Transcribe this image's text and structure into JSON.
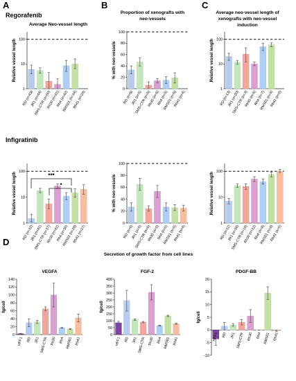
{
  "panels": {
    "A": "A",
    "B": "B",
    "C": "C",
    "D": "D"
  },
  "drugs": {
    "top": "Regorafenib",
    "bottom": "Infigratinib"
  },
  "titles": {
    "a_top": "Average Neo-vessel length",
    "b_top_1": "Proportion of xenografts with",
    "b_top_2": "neo-vessels",
    "c_top_1": "Average neo-vessel length of",
    "c_top_2": "xenografts with neo-vessel",
    "c_top_3": "induction",
    "d_header": "Secretion of growth factor from cell lines"
  },
  "significance": {
    "star3": "***",
    "star1": "*"
  },
  "colors": {
    "RD": "#a9c4ec",
    "JR1": "#b7e3b0",
    "SMS-CTR": "#f2968c",
    "Rh30": "#d28fc8",
    "Rh4": "#9fc7f2",
    "RMS01": "#b9dc95",
    "Rh41": "#f4b38e",
    "HFF1": "#6a2591",
    "error": "#555555"
  },
  "chart_data": [
    {
      "id": "reg_vessel_length",
      "type": "bar",
      "scale": "log",
      "ylabel": "Relative vessel length",
      "ylim": [
        1,
        200
      ],
      "yticks": [
        1,
        10,
        100
      ],
      "reference_line": 100,
      "categories": [
        "RD (n=43)",
        "JR1 (n=44)",
        "SMS-CTR (n=60)",
        "Rh30 (n=41)",
        "Rh4 (n=42)",
        "RMS01 (n=34)",
        "Rh41 (n=28)"
      ],
      "colors": [
        "RD",
        "JR1",
        "SMS-CTR",
        "Rh30",
        "Rh4",
        "RMS01",
        "Rh41"
      ],
      "values": [
        6,
        5.5,
        2,
        1.5,
        8.5,
        10,
        null
      ],
      "errors": [
        [
          4,
          9
        ],
        [
          4.3,
          7
        ],
        [
          1,
          4.5
        ],
        [
          1,
          2.5
        ],
        [
          5,
          14
        ],
        [
          6.5,
          16
        ],
        null
      ]
    },
    {
      "id": "reg_proportion",
      "type": "bar",
      "ylabel": "% with neo-vessels",
      "ylim": [
        0,
        100
      ],
      "yticks": [
        0,
        20,
        40,
        60,
        80,
        100
      ],
      "reference_line": 100,
      "categories": [
        "RD (n=6)",
        "JR1 (n=5)",
        "SMS-CTR (n=5)",
        "Rh30 (n=6)",
        "Rh4 (n=5)",
        "RMS01 (n=5)",
        "Rh41 (n=4)"
      ],
      "colors": [
        "RD",
        "JR1",
        "SMS-CTR",
        "Rh30",
        "Rh4",
        "RMS01",
        "Rh41"
      ],
      "values": [
        33,
        47,
        6,
        14,
        15,
        19,
        null
      ],
      "errors": [
        [
          26,
          40
        ],
        [
          40,
          54
        ],
        [
          0,
          12
        ],
        [
          10,
          18
        ],
        [
          9,
          21
        ],
        [
          10,
          28
        ],
        null
      ]
    },
    {
      "id": "reg_induction",
      "type": "bar",
      "scale": "log",
      "ylabel": "Relative vessel length",
      "ylim": [
        1,
        200
      ],
      "yticks": [
        1,
        10,
        100
      ],
      "reference_line": 100,
      "categories": [
        "RD (n=13)",
        "JR1 (n=20)",
        "SMS-CTR (n=3)",
        "Rh30 (n=6)",
        "Rh4 (n=7)",
        "RMS01 (n=6)",
        "Rh41 (n=0)"
      ],
      "colors": [
        "RD",
        "JR1",
        "SMS-CTR",
        "Rh30",
        "Rh4",
        "RMS01",
        "Rh41"
      ],
      "values": [
        20,
        12,
        25,
        10,
        50,
        60,
        null
      ],
      "errors": [
        [
          14,
          27
        ],
        [
          10,
          14
        ],
        [
          12,
          45
        ],
        [
          8.5,
          12
        ],
        [
          35,
          70
        ],
        [
          50,
          72
        ],
        null
      ]
    },
    {
      "id": "inf_vessel_length",
      "type": "bar",
      "scale": "log",
      "ylabel": "Relative vessel length",
      "ylim": [
        1,
        200
      ],
      "yticks": [
        1,
        10,
        100
      ],
      "reference_line": 100,
      "categories": [
        "RD (n=32)",
        "JR1 (n=41)",
        "SMS-CTR (n=37)",
        "Rh30 (n=41)",
        "Rh4 (n=30)",
        "RMS01 (n=29)",
        "Rh41 (n=27)"
      ],
      "colors": [
        "RD",
        "JR1",
        "SMS-CTR",
        "Rh30",
        "Rh4",
        "RMS01",
        "Rh41"
      ],
      "values": [
        1.5,
        18,
        5.5,
        27,
        11,
        14.5,
        20
      ],
      "errors": [
        [
          1.1,
          2.2
        ],
        [
          15,
          22
        ],
        [
          3.5,
          8.5
        ],
        [
          22,
          33
        ],
        [
          8,
          15
        ],
        [
          10,
          21
        ],
        [
          13,
          30
        ]
      ]
    },
    {
      "id": "inf_proportion",
      "type": "bar",
      "ylabel": "% with neo-vessels",
      "ylim": [
        0,
        100
      ],
      "yticks": [
        0,
        20,
        40,
        60,
        80,
        100
      ],
      "reference_line": 100,
      "categories": [
        "RD (n=6)",
        "JR1 (n=5)",
        "SMS-CTR (n=5)",
        "Rh30 (n=5)",
        "Rh4 (n=5)",
        "RMS01 (n=5)",
        "Rh41 (n=4)"
      ],
      "colors": [
        "RD",
        "JR1",
        "SMS-CTR",
        "Rh30",
        "Rh4",
        "RMS01",
        "Rh41"
      ],
      "values": [
        27,
        65,
        24,
        53,
        27,
        26,
        25
      ],
      "errors": [
        [
          20,
          34
        ],
        [
          55,
          75
        ],
        [
          20,
          29
        ],
        [
          43,
          63
        ],
        [
          20,
          34
        ],
        [
          21,
          31
        ],
        [
          20,
          30
        ]
      ]
    },
    {
      "id": "inf_induction",
      "type": "bar",
      "scale": "log",
      "ylabel": "Relative vessel length",
      "ylim": [
        1,
        200
      ],
      "yticks": [
        1,
        10,
        100
      ],
      "reference_line": 100,
      "categories": [
        "RD (n=11)",
        "JR1 (n=36)",
        "SMS-CTR (n=19)",
        "Rh30 (n=22)",
        "Rh4 (n=8)",
        "RMS01 (n=8)",
        "Rh41 (n=5)"
      ],
      "colors": [
        "RD",
        "JR1",
        "SMS-CTR",
        "Rh30",
        "Rh4",
        "RMS01",
        "Rh41"
      ],
      "values": [
        7,
        28,
        26,
        50,
        40,
        75,
        100
      ],
      "errors": [
        [
          5.5,
          9
        ],
        [
          24,
          33
        ],
        [
          20,
          33
        ],
        [
          40,
          62
        ],
        [
          32,
          50
        ],
        [
          60,
          92
        ],
        [
          90,
          120
        ]
      ]
    },
    {
      "id": "vegfa",
      "type": "bar",
      "title": "VEGFA",
      "ylabel": "fg/cell",
      "ylim": [
        0,
        140
      ],
      "yticks": [
        0,
        20,
        40,
        60,
        80,
        100,
        120,
        140
      ],
      "categories": [
        "HFF1",
        "RD",
        "JR1",
        "SMS-CTR",
        "Rh30",
        "Rh4",
        "RMS01",
        "Rh41"
      ],
      "colors": [
        "HFF1",
        "RD",
        "JR1",
        "SMS-CTR",
        "Rh30",
        "Rh4",
        "RMS01",
        "Rh41"
      ],
      "values": [
        2,
        30,
        32,
        65,
        100,
        17,
        14,
        42
      ],
      "errors": [
        [
          1,
          3
        ],
        [
          20,
          40
        ],
        [
          28,
          36
        ],
        [
          60,
          70
        ],
        [
          70,
          130
        ],
        [
          16,
          18
        ],
        [
          13,
          15
        ],
        [
          32,
          52
        ]
      ]
    },
    {
      "id": "fgf2",
      "type": "bar",
      "title": "FGF-2",
      "ylabel": "fg/cell",
      "ylim": [
        0,
        400
      ],
      "yticks": [
        0,
        50,
        100,
        150,
        200,
        250,
        300,
        350,
        400
      ],
      "categories": [
        "HFF1",
        "RD",
        "JR1",
        "SMS-CTR",
        "Rh30",
        "Rh4",
        "RMS01",
        "Rh41"
      ],
      "colors": [
        "HFF1",
        "RD",
        "JR1",
        "SMS-CTR",
        "Rh30",
        "Rh4",
        "RMS01",
        "Rh41"
      ],
      "values": [
        85,
        245,
        108,
        90,
        305,
        65,
        135,
        78
      ],
      "errors": [
        [
          75,
          95
        ],
        [
          170,
          320
        ],
        [
          103,
          113
        ],
        [
          85,
          95
        ],
        [
          250,
          360
        ],
        [
          62,
          68
        ],
        [
          130,
          140
        ],
        [
          74,
          82
        ]
      ]
    },
    {
      "id": "pdgfbb",
      "type": "bar",
      "title": "PDGF-BB",
      "ylabel": "fg/cell",
      "ylim": [
        -10,
        20
      ],
      "yticks": [
        -10,
        -5,
        0,
        5,
        10,
        15,
        20
      ],
      "categories": [
        "HFF1",
        "RD",
        "JR1",
        "SMS-CTR",
        "Rh30",
        "Rh4",
        "RMS01",
        "Rh41"
      ],
      "colors": [
        "HFF1",
        "RD",
        "JR1",
        "SMS-CTR",
        "Rh30",
        "Rh4",
        "RMS01",
        "Rh41"
      ],
      "values": [
        -3.5,
        1.5,
        2,
        3,
        5.5,
        0,
        14.5,
        -0.3
      ],
      "errors": [
        [
          -6,
          -1
        ],
        [
          0,
          3
        ],
        [
          1.5,
          2.5
        ],
        [
          2,
          4
        ],
        [
          3,
          8
        ],
        [
          0,
          0
        ],
        [
          12,
          17
        ],
        [
          -0.6,
          0
        ]
      ]
    }
  ]
}
